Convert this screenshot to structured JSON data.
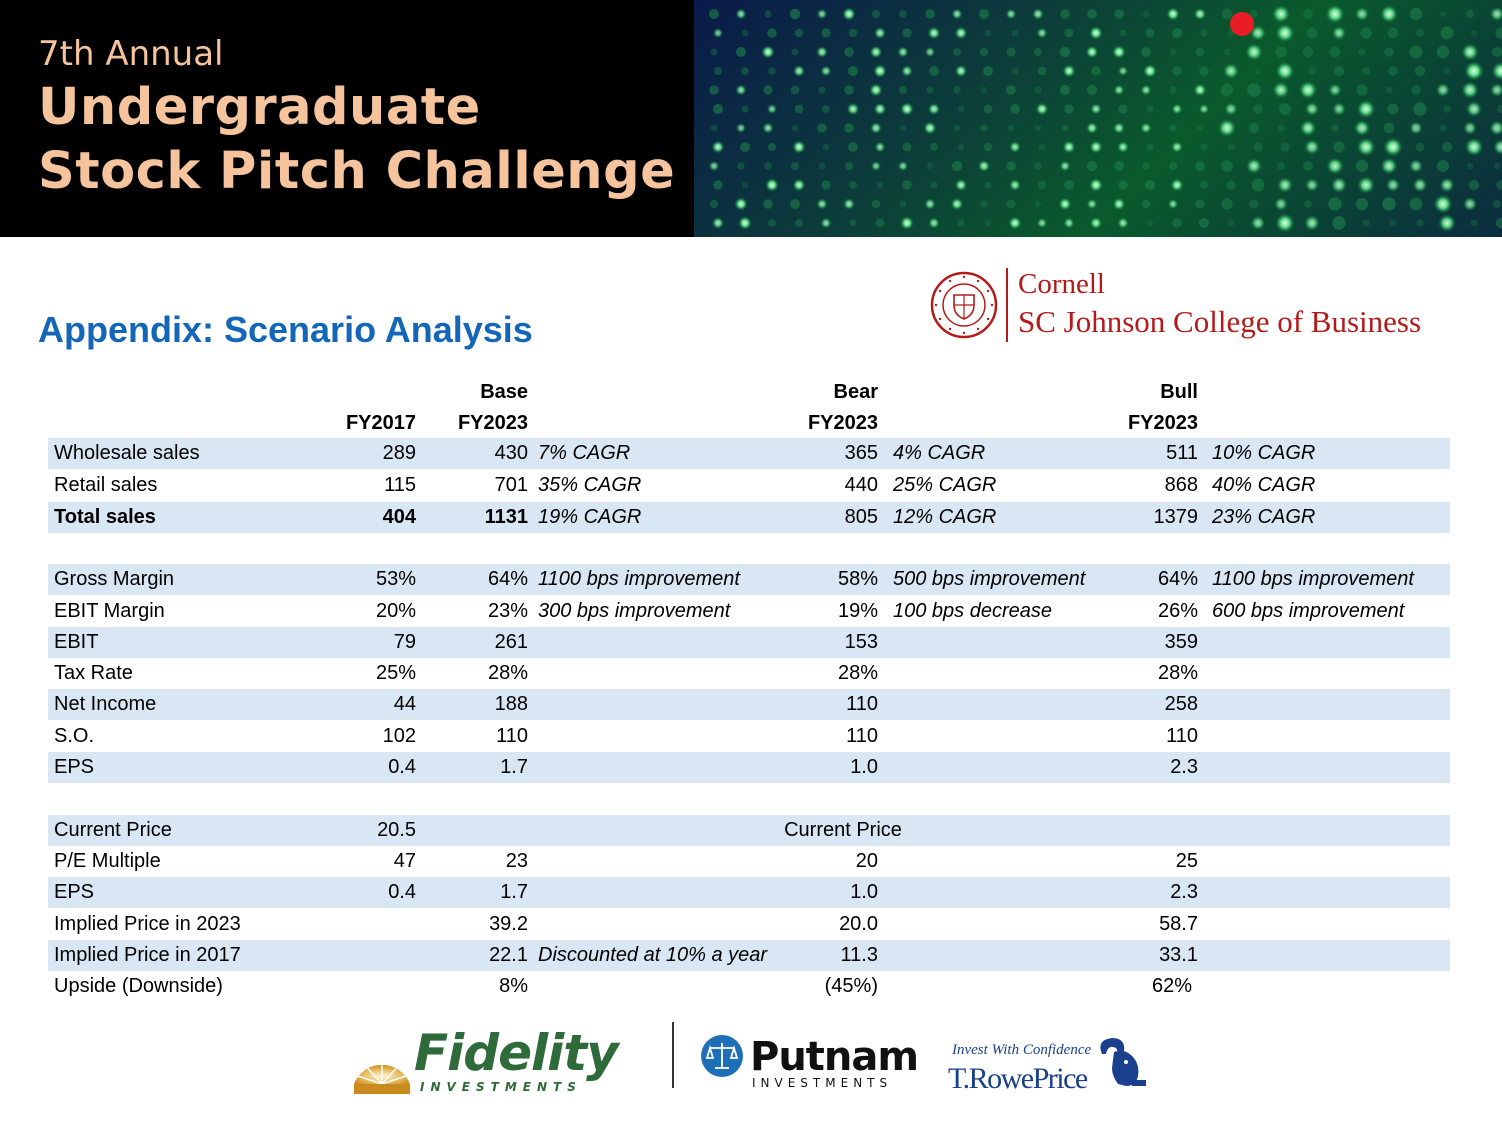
{
  "header": {
    "line1": "7th Annual",
    "line2": "Undergraduate",
    "line3": "Stock Pitch Challenge",
    "text_color": "#f5c49c",
    "background": "#000000",
    "image_icon": "led-stock-ticker-image"
  },
  "title": "Appendix: Scenario Analysis",
  "cornell": {
    "name": "Cornell",
    "school": "SC Johnson College of Business",
    "color": "#b31b1b",
    "seal_icon": "cornell-seal-icon"
  },
  "table": {
    "headers": {
      "base_top": "Base",
      "bear_top": "Bear",
      "bull_top": "Bull",
      "fy2017": "FY2017",
      "base_fy": "FY2023",
      "bear_fy": "FY2023",
      "bull_fy": "FY2023"
    },
    "rows": [
      {
        "label": "Wholesale sales",
        "fy2017": "289",
        "base": "430",
        "base_note": "7% CAGR",
        "bear": "365",
        "bear_note": "4% CAGR",
        "bull": "511",
        "bull_note": "10% CAGR"
      },
      {
        "label": "Retail sales",
        "fy2017": "115",
        "base": "701",
        "base_note": "35% CAGR",
        "bear": "440",
        "bear_note": "25% CAGR",
        "bull": "868",
        "bull_note": "40% CAGR"
      },
      {
        "label": "Total sales",
        "fy2017": "404",
        "base": "1131",
        "base_note": "19% CAGR",
        "bear": "805",
        "bear_note": "12% CAGR",
        "bull": "1379",
        "bull_note": "23% CAGR"
      },
      {
        "label": "Gross Margin",
        "fy2017": "53%",
        "base": "64%",
        "base_note": "1100 bps improvement",
        "bear": "58%",
        "bear_note": "500 bps improvement",
        "bull": "64%",
        "bull_note": "1100 bps improvement"
      },
      {
        "label": "EBIT Margin",
        "fy2017": "20%",
        "base": "23%",
        "base_note": "300 bps improvement",
        "bear": "19%",
        "bear_note": "100 bps decrease",
        "bull": "26%",
        "bull_note": "600 bps improvement"
      },
      {
        "label": "EBIT",
        "fy2017": "79",
        "base": "261",
        "bear": "153",
        "bull": "359"
      },
      {
        "label": "Tax Rate",
        "fy2017": "25%",
        "base": "28%",
        "bear": "28%",
        "bull": "28%"
      },
      {
        "label": "Net Income",
        "fy2017": "44",
        "base": "188",
        "bear": "110",
        "bull": "258"
      },
      {
        "label": "S.O.",
        "fy2017": "102",
        "base": "110",
        "bear": "110",
        "bull": "110"
      },
      {
        "label": "EPS",
        "fy2017": "0.4",
        "base": "1.7",
        "bear": "1.0",
        "bull": "2.3"
      },
      {
        "label": "Current Price",
        "fy2017": "20.5",
        "bear_center": "Current Price"
      },
      {
        "label": "P/E Multiple",
        "fy2017": "47",
        "base": "23",
        "bear": "20",
        "bull": "25"
      },
      {
        "label": "EPS",
        "fy2017": "0.4",
        "base": "1.7",
        "bear": "1.0",
        "bull": "2.3"
      },
      {
        "label": "Implied Price in 2023",
        "base": "39.2",
        "bear": "20.0",
        "bull": "58.7"
      },
      {
        "label": "Implied Price in 2017",
        "base": "22.1",
        "base_note": "Discounted at 10% a year",
        "bear": "11.3",
        "bull": "33.1"
      },
      {
        "label": "Upside (Downside)",
        "base": "8%",
        "bear": "(45%)",
        "bull": "62%"
      }
    ],
    "shade_color": "#d9e6f4"
  },
  "sponsors": {
    "fidelity": {
      "name": "Fidelity",
      "sub": "INVESTMENTS",
      "color": "#2f6b3a",
      "icon": "fidelity-sunburst-icon"
    },
    "putnam": {
      "name": "Putnam",
      "sub": "INVESTMENTS",
      "icon": "putnam-scales-icon"
    },
    "trowe": {
      "tagline": "Invest With Confidence",
      "name": "T.RowePrice",
      "color": "#1a3f8c",
      "icon": "bighorn-ram-icon"
    }
  }
}
